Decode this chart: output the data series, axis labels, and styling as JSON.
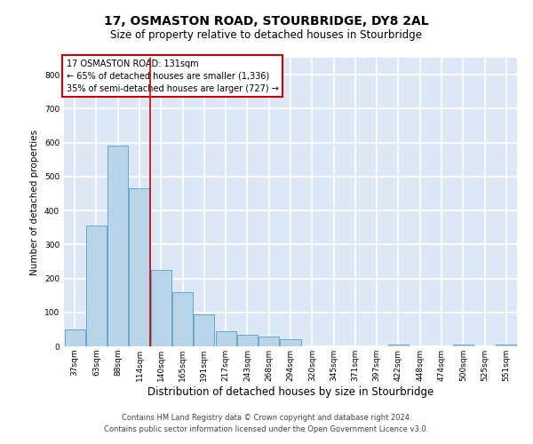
{
  "title": "17, OSMASTON ROAD, STOURBRIDGE, DY8 2AL",
  "subtitle": "Size of property relative to detached houses in Stourbridge",
  "xlabel": "Distribution of detached houses by size in Stourbridge",
  "ylabel": "Number of detached properties",
  "footer_line1": "Contains HM Land Registry data © Crown copyright and database right 2024.",
  "footer_line2": "Contains public sector information licensed under the Open Government Licence v3.0.",
  "bar_labels": [
    "37sqm",
    "63sqm",
    "88sqm",
    "114sqm",
    "140sqm",
    "165sqm",
    "191sqm",
    "217sqm",
    "243sqm",
    "268sqm",
    "294sqm",
    "320sqm",
    "345sqm",
    "371sqm",
    "397sqm",
    "422sqm",
    "448sqm",
    "474sqm",
    "500sqm",
    "525sqm",
    "551sqm"
  ],
  "bar_values": [
    50,
    355,
    590,
    465,
    225,
    160,
    95,
    45,
    35,
    30,
    20,
    0,
    0,
    0,
    0,
    5,
    0,
    0,
    5,
    0,
    5
  ],
  "bar_color": "#b8d4e8",
  "bar_edge_color": "#5a9dc8",
  "background_color": "#dce8f5",
  "grid_color": "#ffffff",
  "ylim": [
    0,
    850
  ],
  "yticks": [
    0,
    100,
    200,
    300,
    400,
    500,
    600,
    700,
    800
  ],
  "property_line_x": 3.5,
  "property_line_color": "#cc0000",
  "annotation_text_line1": "17 OSMASTON ROAD: 131sqm",
  "annotation_text_line2": "← 65% of detached houses are smaller (1,336)",
  "annotation_text_line3": "35% of semi-detached houses are larger (727) →",
  "annotation_box_color": "#cc0000",
  "title_fontsize": 10,
  "subtitle_fontsize": 8.5,
  "ylabel_fontsize": 7.5,
  "xlabel_fontsize": 8.5,
  "tick_fontsize": 6.5,
  "ann_fontsize": 7,
  "footer_fontsize": 6
}
